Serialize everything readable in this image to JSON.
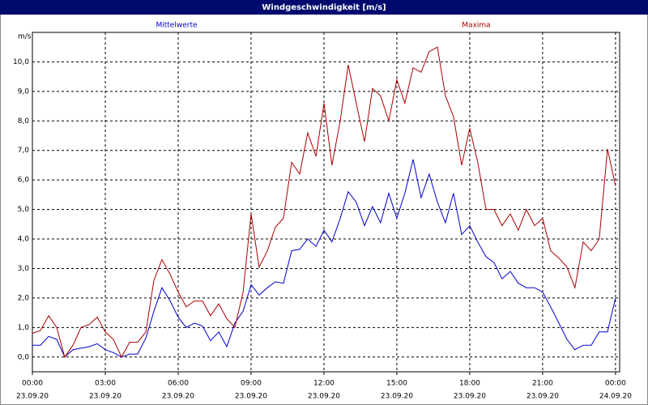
{
  "chart_data": {
    "type": "line",
    "title": "Windgeschwindigkeit [m/s]",
    "y_label": "m/s",
    "x": [
      0,
      0.33,
      0.67,
      1,
      1.33,
      1.67,
      2,
      2.33,
      2.67,
      3,
      3.33,
      3.67,
      4,
      4.33,
      4.67,
      5,
      5.33,
      5.67,
      6,
      6.33,
      6.67,
      7,
      7.33,
      7.67,
      8,
      8.33,
      8.67,
      9,
      9.33,
      9.67,
      10,
      10.33,
      10.67,
      11,
      11.33,
      11.67,
      12,
      12.33,
      12.67,
      13,
      13.33,
      13.67,
      14,
      14.33,
      14.67,
      15,
      15.33,
      15.67,
      16,
      16.33,
      16.67,
      17,
      17.33,
      17.67,
      18,
      18.33,
      18.67,
      19,
      19.33,
      19.67,
      20,
      20.33,
      20.67,
      21,
      21.33,
      21.67,
      22,
      22.33,
      22.67,
      23,
      23.33,
      23.67,
      24
    ],
    "series": [
      {
        "name": "Mittelwerte",
        "color": "#0000cc",
        "values": [
          0.4,
          0.4,
          0.7,
          0.6,
          0.0,
          0.25,
          0.3,
          0.35,
          0.45,
          0.25,
          0.15,
          0.0,
          0.1,
          0.1,
          0.65,
          1.55,
          2.35,
          1.9,
          1.35,
          1.0,
          1.15,
          1.05,
          0.55,
          0.85,
          0.35,
          1.15,
          1.55,
          2.45,
          2.1,
          2.35,
          2.55,
          2.5,
          3.6,
          3.65,
          4.0,
          3.75,
          4.3,
          3.9,
          4.7,
          5.6,
          5.25,
          4.45,
          5.1,
          4.55,
          5.55,
          4.7,
          5.55,
          6.7,
          5.4,
          6.2,
          5.25,
          4.55,
          5.55,
          4.15,
          4.45,
          3.9,
          3.4,
          3.2,
          2.65,
          2.9,
          2.5,
          2.35,
          2.35,
          2.2,
          1.7,
          1.15,
          0.6,
          0.25,
          0.4,
          0.4,
          0.85,
          0.85,
          2.0
        ]
      },
      {
        "name": "Maxima",
        "color": "#aa0000",
        "values": [
          0.8,
          0.9,
          1.4,
          1.0,
          0.0,
          0.4,
          1.0,
          1.1,
          1.35,
          0.85,
          0.6,
          0.0,
          0.5,
          0.5,
          0.85,
          2.6,
          3.3,
          2.8,
          2.2,
          1.7,
          1.9,
          1.9,
          1.4,
          1.8,
          1.3,
          1.0,
          2.2,
          4.85,
          3.05,
          3.6,
          4.4,
          4.7,
          6.6,
          6.2,
          7.6,
          6.8,
          8.6,
          6.5,
          8.0,
          9.9,
          8.6,
          7.3,
          9.1,
          8.85,
          8.0,
          9.4,
          8.6,
          9.8,
          9.65,
          10.35,
          10.5,
          8.85,
          8.15,
          6.5,
          7.75,
          6.6,
          5.0,
          5.0,
          4.45,
          4.85,
          4.3,
          5.0,
          4.45,
          4.7,
          3.6,
          3.35,
          3.05,
          2.35,
          3.9,
          3.6,
          4.0,
          7.05,
          5.8
        ]
      }
    ],
    "xlim": [
      0,
      24.17
    ],
    "xticks": [
      {
        "value": 0,
        "label": [
          "00:00",
          "23.09.20"
        ]
      },
      {
        "value": 3,
        "label": [
          "03:00",
          "23.09.20"
        ]
      },
      {
        "value": 6,
        "label": [
          "06:00",
          "23.09.20"
        ]
      },
      {
        "value": 9,
        "label": [
          "09:00",
          "23.09.20"
        ]
      },
      {
        "value": 12,
        "label": [
          "12:00",
          "23.09.20"
        ]
      },
      {
        "value": 15,
        "label": [
          "15:00",
          "23.09.20"
        ]
      },
      {
        "value": 18,
        "label": [
          "18:00",
          "23.09.20"
        ]
      },
      {
        "value": 21,
        "label": [
          "21:00",
          "23.09.20"
        ]
      },
      {
        "value": 24,
        "label": [
          "00:00",
          "24.09.20"
        ]
      }
    ],
    "ylim": [
      -0.5,
      11
    ],
    "yticks": [
      {
        "value": 0,
        "label": "0,0"
      },
      {
        "value": 1,
        "label": "1,0"
      },
      {
        "value": 2,
        "label": "2,0"
      },
      {
        "value": 3,
        "label": "3,0"
      },
      {
        "value": 4,
        "label": "4,0"
      },
      {
        "value": 5,
        "label": "5,0"
      },
      {
        "value": 6,
        "label": "6,0"
      },
      {
        "value": 7,
        "label": "7,0"
      },
      {
        "value": 8,
        "label": "8,0"
      },
      {
        "value": 9,
        "label": "9,0"
      },
      {
        "value": 10,
        "label": "10,0"
      }
    ],
    "grid": true
  }
}
